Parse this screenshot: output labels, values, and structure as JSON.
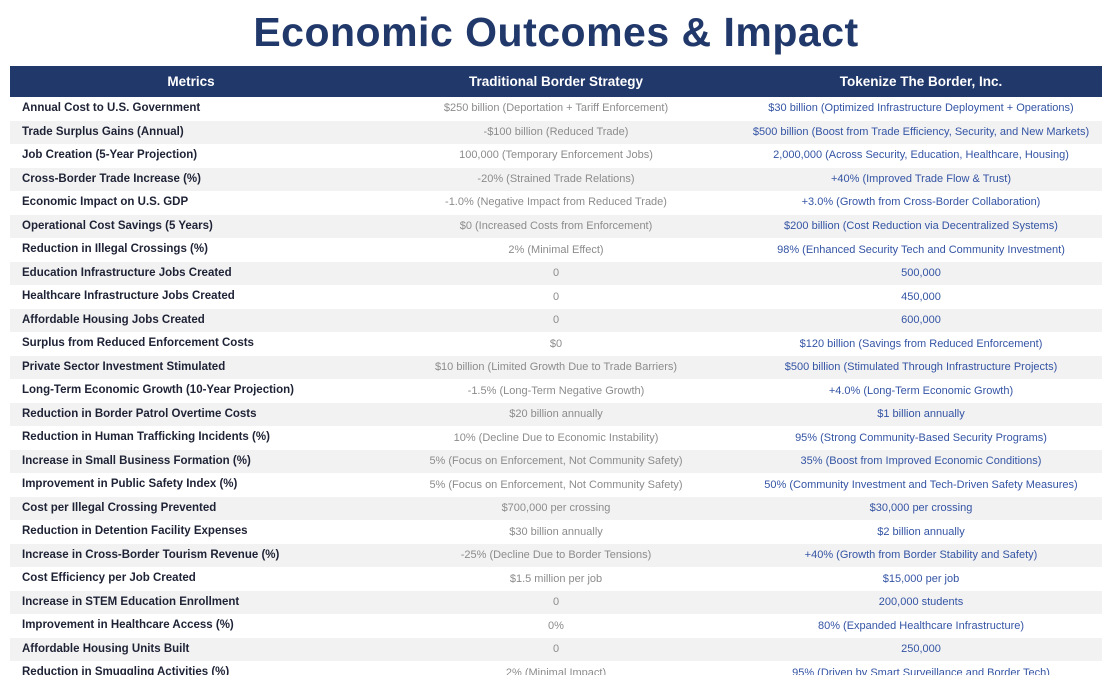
{
  "title": "Economic Outcomes & Impact",
  "colors": {
    "header_bg": "#21386b",
    "title_text": "#21386b",
    "metric_text": "#1e2235",
    "traditional_text": "#8c8c8c",
    "tokenize_text": "#3454a4",
    "row_alt_bg": "#f2f2f2"
  },
  "chart_data": {
    "type": "table",
    "title": "Economic Outcomes & Impact",
    "columns": [
      "Metrics",
      "Traditional Border Strategy",
      "Tokenize The Border, Inc."
    ],
    "rows": [
      [
        "Annual Cost to U.S. Government",
        "$250 billion (Deportation + Tariff Enforcement)",
        "$30 billion (Optimized Infrastructure Deployment + Operations)"
      ],
      [
        "Trade Surplus Gains (Annual)",
        "-$100 billion (Reduced Trade)",
        "$500 billion (Boost from Trade Efficiency, Security, and New Markets)"
      ],
      [
        "Job Creation (5-Year Projection)",
        "100,000 (Temporary Enforcement Jobs)",
        "2,000,000 (Across Security, Education, Healthcare, Housing)"
      ],
      [
        "Cross-Border Trade Increase (%)",
        "-20% (Strained Trade Relations)",
        "+40% (Improved Trade Flow & Trust)"
      ],
      [
        "Economic Impact on U.S. GDP",
        "-1.0% (Negative Impact from Reduced Trade)",
        "+3.0% (Growth from Cross-Border Collaboration)"
      ],
      [
        "Operational Cost Savings (5 Years)",
        "$0 (Increased Costs from Enforcement)",
        "$200 billion (Cost Reduction via Decentralized Systems)"
      ],
      [
        "Reduction in Illegal Crossings (%)",
        "2% (Minimal Effect)",
        "98% (Enhanced Security Tech and Community Investment)"
      ],
      [
        "Education Infrastructure Jobs Created",
        "0",
        "500,000"
      ],
      [
        "Healthcare Infrastructure Jobs Created",
        "0",
        "450,000"
      ],
      [
        "Affordable Housing Jobs Created",
        "0",
        "600,000"
      ],
      [
        "Surplus from Reduced Enforcement Costs",
        "$0",
        "$120 billion (Savings from Reduced Enforcement)"
      ],
      [
        "Private Sector Investment Stimulated",
        "$10 billion (Limited Growth Due to Trade Barriers)",
        "$500 billion (Stimulated Through Infrastructure Projects)"
      ],
      [
        "Long-Term Economic Growth (10-Year Projection)",
        "-1.5% (Long-Term Negative Growth)",
        "+4.0% (Long-Term Economic Growth)"
      ],
      [
        "Reduction in Border Patrol Overtime Costs",
        "$20 billion annually",
        "$1 billion annually"
      ],
      [
        "Reduction in Human Trafficking Incidents (%)",
        "10% (Decline Due to Economic Instability)",
        "95% (Strong Community-Based Security Programs)"
      ],
      [
        "Increase in Small Business Formation (%)",
        "5% (Focus on Enforcement, Not Community Safety)",
        "35% (Boost from Improved Economic Conditions)"
      ],
      [
        "Improvement in Public Safety Index (%)",
        "5% (Focus on Enforcement, Not Community Safety)",
        "50% (Community Investment and Tech-Driven Safety Measures)"
      ],
      [
        "Cost per Illegal Crossing Prevented",
        "$700,000 per crossing",
        "$30,000 per crossing"
      ],
      [
        "Reduction in Detention Facility Expenses",
        "$30 billion annually",
        "$2 billion annually"
      ],
      [
        "Increase in Cross-Border Tourism Revenue (%)",
        "-25% (Decline Due to Border Tensions)",
        "+40% (Growth from Border Stability and Safety)"
      ],
      [
        "Cost Efficiency per Job Created",
        "$1.5 million per job",
        "$15,000 per job"
      ],
      [
        "Increase in STEM Education Enrollment",
        "0",
        "200,000 students"
      ],
      [
        "Improvement in Healthcare Access (%)",
        "0%",
        "80% (Expanded Healthcare Infrastructure)"
      ],
      [
        "Affordable Housing Units Built",
        "0",
        "250,000"
      ],
      [
        "Reduction in Smuggling Activities (%)",
        "2% (Minimal Impact)",
        "95% (Driven by Smart Surveillance and Border Tech)"
      ]
    ]
  }
}
